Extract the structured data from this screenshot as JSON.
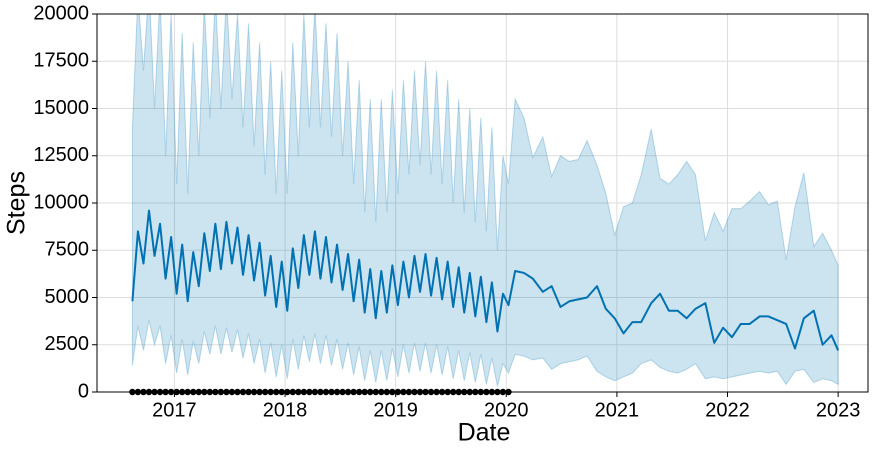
{
  "chart_data": {
    "type": "line",
    "xlabel": "Date",
    "ylabel": "Steps",
    "xlim": [
      2016.3,
      2023.27
    ],
    "xticks": [
      2017,
      2018,
      2019,
      2020,
      2021,
      2022,
      2023
    ],
    "ylim": [
      0,
      20000
    ],
    "yticks": [
      0,
      2500,
      5000,
      7500,
      10000,
      12500,
      15000,
      17500,
      20000
    ],
    "grid": true,
    "x": [
      2016.62,
      2016.67,
      2016.72,
      2016.77,
      2016.82,
      2016.87,
      2016.92,
      2016.97,
      2017.02,
      2017.07,
      2017.12,
      2017.17,
      2017.22,
      2017.27,
      2017.32,
      2017.37,
      2017.42,
      2017.47,
      2017.52,
      2017.57,
      2017.62,
      2017.67,
      2017.72,
      2017.77,
      2017.82,
      2017.87,
      2017.92,
      2017.97,
      2018.02,
      2018.07,
      2018.12,
      2018.17,
      2018.22,
      2018.27,
      2018.32,
      2018.37,
      2018.42,
      2018.47,
      2018.52,
      2018.57,
      2018.62,
      2018.67,
      2018.72,
      2018.77,
      2018.82,
      2018.87,
      2018.92,
      2018.97,
      2019.02,
      2019.07,
      2019.12,
      2019.17,
      2019.22,
      2019.27,
      2019.32,
      2019.37,
      2019.42,
      2019.47,
      2019.52,
      2019.57,
      2019.62,
      2019.67,
      2019.72,
      2019.77,
      2019.82,
      2019.87,
      2019.92,
      2019.97,
      2020.02,
      2020.08,
      2020.16,
      2020.24,
      2020.33,
      2020.41,
      2020.49,
      2020.57,
      2020.65,
      2020.73,
      2020.82,
      2020.9,
      2020.98,
      2021.06,
      2021.14,
      2021.22,
      2021.31,
      2021.39,
      2021.47,
      2021.55,
      2021.63,
      2021.71,
      2021.8,
      2021.88,
      2021.96,
      2022.04,
      2022.12,
      2022.2,
      2022.29,
      2022.37,
      2022.45,
      2022.53,
      2022.61,
      2022.69,
      2022.78,
      2022.86,
      2022.94,
      2023.0
    ],
    "series": [
      {
        "color": "#0072b2",
        "values": [
          4800,
          8500,
          6800,
          9600,
          7200,
          8900,
          6000,
          8200,
          5200,
          7800,
          4800,
          7400,
          5600,
          8400,
          6400,
          8900,
          6500,
          9000,
          6800,
          8700,
          6200,
          8300,
          5900,
          7900,
          5100,
          7200,
          4500,
          6900,
          4300,
          7600,
          5500,
          8300,
          6200,
          8500,
          6000,
          8200,
          5800,
          7800,
          5400,
          7300,
          4800,
          7000,
          4200,
          6500,
          3900,
          6400,
          4200,
          6700,
          4600,
          6900,
          5000,
          7200,
          5300,
          7300,
          5100,
          7100,
          4900,
          6900,
          4500,
          6600,
          4200,
          6300,
          4000,
          6100,
          3700,
          5800,
          3200,
          5200,
          4600,
          6400,
          6300,
          6000,
          5300,
          5600,
          4500,
          4800,
          4900,
          5000,
          5600,
          4400,
          3900,
          3100,
          3700,
          3700,
          4700,
          5200,
          4300,
          4300,
          3900,
          4400,
          4700,
          2600,
          3400,
          2900,
          3600,
          3600,
          4000,
          4000,
          3800,
          3600,
          2300,
          3900,
          4300,
          2500,
          3000,
          2200
        ]
      }
    ],
    "band": {
      "color": "#0072b2",
      "upper": [
        14000,
        21000,
        17000,
        21500,
        15000,
        21000,
        12500,
        20000,
        11000,
        19000,
        10500,
        18500,
        12500,
        20500,
        14500,
        21000,
        15000,
        21000,
        15500,
        20000,
        14000,
        19500,
        13000,
        18500,
        11500,
        17500,
        10500,
        17000,
        10500,
        18500,
        12500,
        20000,
        14000,
        20500,
        14000,
        19500,
        13500,
        19000,
        12500,
        17500,
        11000,
        16500,
        9500,
        15500,
        9000,
        15500,
        9500,
        16000,
        10500,
        16500,
        11500,
        17000,
        12000,
        17500,
        11500,
        17000,
        11000,
        16500,
        10000,
        15500,
        9500,
        15000,
        9000,
        14500,
        8500,
        14000,
        7500,
        12500,
        11000,
        15500,
        14500,
        12400,
        13500,
        11400,
        12500,
        12200,
        12300,
        13300,
        12000,
        10500,
        8300,
        9800,
        10000,
        11500,
        13900,
        11300,
        11000,
        11500,
        12200,
        11500,
        8000,
        9500,
        8500,
        9700,
        9700,
        10100,
        10600,
        9900,
        10100,
        7000,
        9800,
        11600,
        7700,
        8400,
        7500,
        6700
      ],
      "lower": [
        1400,
        3500,
        2200,
        3800,
        2500,
        3500,
        1500,
        3000,
        1000,
        2800,
        900,
        2700,
        1500,
        3200,
        2000,
        3500,
        2000,
        3400,
        2100,
        3300,
        1800,
        3100,
        1500,
        2800,
        1000,
        2600,
        800,
        2500,
        700,
        2800,
        1200,
        3000,
        1600,
        3100,
        1500,
        3000,
        1400,
        2800,
        1200,
        2600,
        900,
        2400,
        600,
        2200,
        500,
        2200,
        600,
        2300,
        800,
        2500,
        1000,
        2600,
        1100,
        2600,
        1000,
        2500,
        900,
        2400,
        700,
        2200,
        600,
        2100,
        500,
        2000,
        400,
        1800,
        300,
        1500,
        1000,
        2000,
        1900,
        1700,
        1800,
        1200,
        1500,
        1600,
        1700,
        1900,
        1100,
        800,
        600,
        800,
        1000,
        1500,
        1700,
        1300,
        1100,
        1000,
        1200,
        1500,
        700,
        800,
        700,
        800,
        900,
        1000,
        1100,
        1000,
        1100,
        400,
        1100,
        1200,
        500,
        700,
        600,
        400
      ]
    },
    "observed": {
      "color": "#000000",
      "values": [
        0,
        0,
        0,
        0,
        0,
        0,
        0,
        0,
        0,
        0,
        0,
        0,
        0,
        0,
        0,
        0,
        0,
        0,
        0,
        0,
        0,
        0,
        0,
        0,
        0,
        0,
        0,
        0,
        0,
        0,
        0,
        0,
        0,
        0,
        0,
        0,
        0,
        0,
        0,
        0,
        0,
        0,
        0,
        0,
        0,
        0,
        0,
        0,
        0,
        0,
        0,
        0,
        0,
        0,
        0,
        0,
        0,
        0,
        0,
        0,
        0,
        0,
        0,
        0,
        0,
        0,
        0,
        0,
        0,
        null,
        null,
        null,
        null,
        null,
        null,
        null,
        null,
        null,
        null,
        null,
        null,
        null,
        null,
        null,
        null,
        null,
        null,
        null,
        null,
        null,
        null,
        null,
        null,
        null,
        null,
        null,
        null,
        null,
        null,
        null,
        null,
        null,
        null,
        null,
        null,
        null
      ]
    }
  }
}
